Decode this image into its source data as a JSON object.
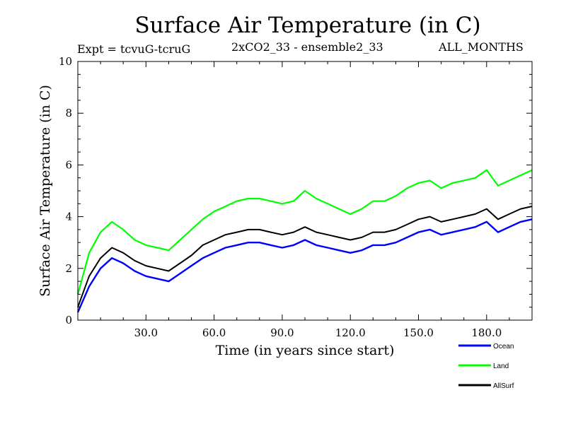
{
  "header": {
    "title": "Surface Air Temperature (in C)",
    "experiment": "Expt = tcvuG-tcruG",
    "run": "2xCO2_33 - ensemble2_33",
    "months": "ALL_MONTHS"
  },
  "chart_data": {
    "type": "line",
    "title": "Surface Air Temperature (in C)",
    "xlabel": "Time (in years since start)",
    "ylabel": "Surface Air Temperature (in C)",
    "xlim": [
      0,
      200
    ],
    "ylim": [
      0,
      10
    ],
    "x_ticks": [
      30,
      60,
      90,
      120,
      150,
      180
    ],
    "x_tick_labels": [
      "30.0",
      "60.0",
      "90.0",
      "120.0",
      "150.0",
      "180.0"
    ],
    "y_ticks": [
      0,
      2,
      4,
      6,
      8,
      10
    ],
    "y_tick_labels": [
      "0",
      "2",
      "4",
      "6",
      "8",
      "10"
    ],
    "legend_position": "bottom-right, below plot",
    "x": [
      0,
      5,
      10,
      15,
      20,
      25,
      30,
      35,
      40,
      45,
      50,
      55,
      60,
      65,
      70,
      75,
      80,
      85,
      90,
      95,
      100,
      105,
      110,
      115,
      120,
      125,
      130,
      135,
      140,
      145,
      150,
      155,
      160,
      165,
      170,
      175,
      180,
      185,
      190,
      195,
      200
    ],
    "series": [
      {
        "name": "Ocean",
        "color": "#0000ff",
        "values": [
          0.3,
          1.3,
          2.0,
          2.4,
          2.2,
          1.9,
          1.7,
          1.6,
          1.5,
          1.8,
          2.1,
          2.4,
          2.6,
          2.8,
          2.9,
          3.0,
          3.0,
          2.9,
          2.8,
          2.9,
          3.1,
          2.9,
          2.8,
          2.7,
          2.6,
          2.7,
          2.9,
          2.9,
          3.0,
          3.2,
          3.4,
          3.5,
          3.3,
          3.4,
          3.5,
          3.6,
          3.8,
          3.4,
          3.6,
          3.8,
          3.9
        ]
      },
      {
        "name": "Land",
        "color": "#00ff00",
        "values": [
          1.0,
          2.6,
          3.4,
          3.8,
          3.5,
          3.1,
          2.9,
          2.8,
          2.7,
          3.1,
          3.5,
          3.9,
          4.2,
          4.4,
          4.6,
          4.7,
          4.7,
          4.6,
          4.5,
          4.6,
          5.0,
          4.7,
          4.5,
          4.3,
          4.1,
          4.3,
          4.6,
          4.6,
          4.8,
          5.1,
          5.3,
          5.4,
          5.1,
          5.3,
          5.4,
          5.5,
          5.8,
          5.2,
          5.4,
          5.6,
          5.8
        ]
      },
      {
        "name": "AllSurf",
        "color": "#000000",
        "values": [
          0.5,
          1.7,
          2.4,
          2.8,
          2.6,
          2.3,
          2.1,
          2.0,
          1.9,
          2.2,
          2.5,
          2.9,
          3.1,
          3.3,
          3.4,
          3.5,
          3.5,
          3.4,
          3.3,
          3.4,
          3.6,
          3.4,
          3.3,
          3.2,
          3.1,
          3.2,
          3.4,
          3.4,
          3.5,
          3.7,
          3.9,
          4.0,
          3.8,
          3.9,
          4.0,
          4.1,
          4.3,
          3.9,
          4.1,
          4.3,
          4.4
        ]
      }
    ]
  }
}
